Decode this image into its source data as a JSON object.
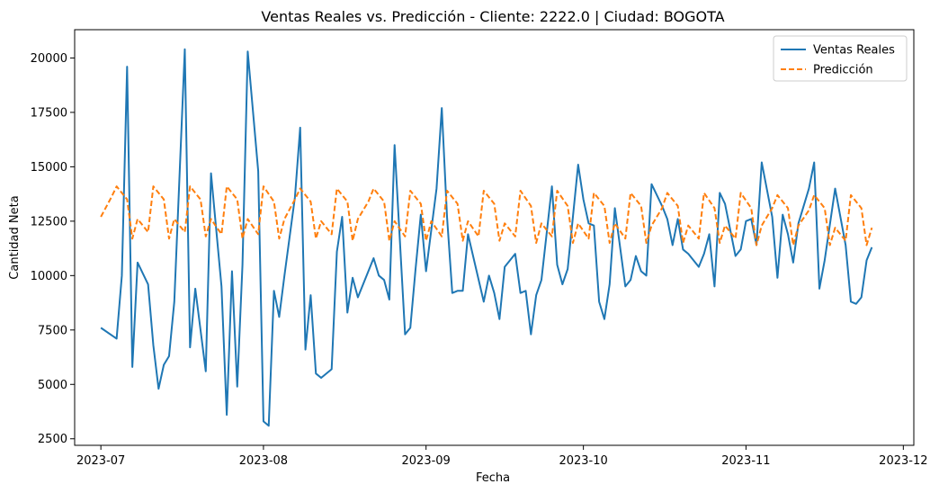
{
  "chart_data": {
    "type": "line",
    "title": "Ventas Reales vs. Predicción - Cliente: 2222.0 | Ciudad: BOGOTA",
    "xlabel": "Fecha",
    "ylabel": "Cantidad Neta",
    "xlim": [
      "2023-06-26",
      "2023-12-03"
    ],
    "ylim": [
      2200,
      21300
    ],
    "x_ticks": [
      {
        "date": "2023-07-01",
        "label": "2023-07"
      },
      {
        "date": "2023-08-01",
        "label": "2023-08"
      },
      {
        "date": "2023-09-01",
        "label": "2023-09"
      },
      {
        "date": "2023-10-01",
        "label": "2023-10"
      },
      {
        "date": "2023-11-01",
        "label": "2023-11"
      },
      {
        "date": "2023-12-01",
        "label": "2023-12"
      }
    ],
    "y_ticks": [
      {
        "value": 2500,
        "label": "2500"
      },
      {
        "value": 5000,
        "label": "5000"
      },
      {
        "value": 7500,
        "label": "7500"
      },
      {
        "value": 10000,
        "label": "10000"
      },
      {
        "value": 12500,
        "label": "12500"
      },
      {
        "value": 15000,
        "label": "15000"
      },
      {
        "value": 17500,
        "label": "17500"
      },
      {
        "value": 20000,
        "label": "20000"
      }
    ],
    "grid": false,
    "legend_position": "top-right",
    "series": [
      {
        "name": "Ventas Reales",
        "color": "#1f77b4",
        "style": "solid",
        "points": [
          [
            "2023-07-01",
            7600
          ],
          [
            "2023-07-04",
            7100
          ],
          [
            "2023-07-05",
            10000
          ],
          [
            "2023-07-06",
            19600
          ],
          [
            "2023-07-07",
            5800
          ],
          [
            "2023-07-08",
            10600
          ],
          [
            "2023-07-10",
            9600
          ],
          [
            "2023-07-11",
            6800
          ],
          [
            "2023-07-12",
            4800
          ],
          [
            "2023-07-13",
            5900
          ],
          [
            "2023-07-14",
            6300
          ],
          [
            "2023-07-15",
            8800
          ],
          [
            "2023-07-17",
            20400
          ],
          [
            "2023-07-18",
            6700
          ],
          [
            "2023-07-19",
            9400
          ],
          [
            "2023-07-21",
            5600
          ],
          [
            "2023-07-22",
            14700
          ],
          [
            "2023-07-24",
            9500
          ],
          [
            "2023-07-25",
            3600
          ],
          [
            "2023-07-26",
            10200
          ],
          [
            "2023-07-27",
            4900
          ],
          [
            "2023-07-28",
            10500
          ],
          [
            "2023-07-29",
            20300
          ],
          [
            "2023-07-31",
            14800
          ],
          [
            "2023-08-01",
            3300
          ],
          [
            "2023-08-02",
            3100
          ],
          [
            "2023-08-03",
            9300
          ],
          [
            "2023-08-04",
            8100
          ],
          [
            "2023-08-05",
            10000
          ],
          [
            "2023-08-07",
            13600
          ],
          [
            "2023-08-08",
            16800
          ],
          [
            "2023-08-09",
            6600
          ],
          [
            "2023-08-10",
            9100
          ],
          [
            "2023-08-11",
            5500
          ],
          [
            "2023-08-12",
            5300
          ],
          [
            "2023-08-14",
            5700
          ],
          [
            "2023-08-15",
            11100
          ],
          [
            "2023-08-16",
            12700
          ],
          [
            "2023-08-17",
            8300
          ],
          [
            "2023-08-18",
            9900
          ],
          [
            "2023-08-19",
            9000
          ],
          [
            "2023-08-22",
            10800
          ],
          [
            "2023-08-23",
            10000
          ],
          [
            "2023-08-24",
            9800
          ],
          [
            "2023-08-25",
            8900
          ],
          [
            "2023-08-26",
            16000
          ],
          [
            "2023-08-28",
            7300
          ],
          [
            "2023-08-29",
            7600
          ],
          [
            "2023-08-30",
            10300
          ],
          [
            "2023-08-31",
            12800
          ],
          [
            "2023-09-01",
            10200
          ],
          [
            "2023-09-03",
            14000
          ],
          [
            "2023-09-04",
            17700
          ],
          [
            "2023-09-05",
            12700
          ],
          [
            "2023-09-06",
            9200
          ],
          [
            "2023-09-07",
            9300
          ],
          [
            "2023-09-08",
            9300
          ],
          [
            "2023-09-09",
            11900
          ],
          [
            "2023-09-12",
            8800
          ],
          [
            "2023-09-13",
            10000
          ],
          [
            "2023-09-14",
            9200
          ],
          [
            "2023-09-15",
            8000
          ],
          [
            "2023-09-16",
            10400
          ],
          [
            "2023-09-18",
            11000
          ],
          [
            "2023-09-19",
            9200
          ],
          [
            "2023-09-20",
            9300
          ],
          [
            "2023-09-21",
            7300
          ],
          [
            "2023-09-22",
            9100
          ],
          [
            "2023-09-23",
            9800
          ],
          [
            "2023-09-25",
            14100
          ],
          [
            "2023-09-26",
            10500
          ],
          [
            "2023-09-27",
            9600
          ],
          [
            "2023-09-28",
            10300
          ],
          [
            "2023-09-30",
            15100
          ],
          [
            "2023-10-01",
            13500
          ],
          [
            "2023-10-02",
            12400
          ],
          [
            "2023-10-03",
            12300
          ],
          [
            "2023-10-04",
            8800
          ],
          [
            "2023-10-05",
            8000
          ],
          [
            "2023-10-06",
            9600
          ],
          [
            "2023-10-07",
            13100
          ],
          [
            "2023-10-09",
            9500
          ],
          [
            "2023-10-10",
            9800
          ],
          [
            "2023-10-11",
            10900
          ],
          [
            "2023-10-12",
            10200
          ],
          [
            "2023-10-13",
            10000
          ],
          [
            "2023-10-14",
            14200
          ],
          [
            "2023-10-16",
            13200
          ],
          [
            "2023-10-17",
            12600
          ],
          [
            "2023-10-18",
            11400
          ],
          [
            "2023-10-19",
            12600
          ],
          [
            "2023-10-20",
            11200
          ],
          [
            "2023-10-21",
            11000
          ],
          [
            "2023-10-23",
            10400
          ],
          [
            "2023-10-24",
            11000
          ],
          [
            "2023-10-25",
            11900
          ],
          [
            "2023-10-26",
            9500
          ],
          [
            "2023-10-27",
            13800
          ],
          [
            "2023-10-28",
            13300
          ],
          [
            "2023-10-30",
            10900
          ],
          [
            "2023-10-31",
            11200
          ],
          [
            "2023-11-01",
            12500
          ],
          [
            "2023-11-02",
            12600
          ],
          [
            "2023-11-03",
            11400
          ],
          [
            "2023-11-04",
            15200
          ],
          [
            "2023-11-06",
            12700
          ],
          [
            "2023-11-07",
            9900
          ],
          [
            "2023-11-08",
            12800
          ],
          [
            "2023-11-09",
            11900
          ],
          [
            "2023-11-10",
            10600
          ],
          [
            "2023-11-11",
            12400
          ],
          [
            "2023-11-13",
            14000
          ],
          [
            "2023-11-14",
            15200
          ],
          [
            "2023-11-15",
            9400
          ],
          [
            "2023-11-16",
            10700
          ],
          [
            "2023-11-18",
            14000
          ],
          [
            "2023-11-20",
            11400
          ],
          [
            "2023-11-21",
            8800
          ],
          [
            "2023-11-22",
            8700
          ],
          [
            "2023-11-23",
            9000
          ],
          [
            "2023-11-24",
            10700
          ],
          [
            "2023-11-25",
            11300
          ]
        ]
      },
      {
        "name": "Predicción",
        "color": "#ff7f0e",
        "style": "dashed",
        "points": [
          [
            "2023-07-01",
            12700
          ],
          [
            "2023-07-03",
            13600
          ],
          [
            "2023-07-04",
            14100
          ],
          [
            "2023-07-06",
            13500
          ],
          [
            "2023-07-07",
            11700
          ],
          [
            "2023-07-08",
            12600
          ],
          [
            "2023-07-10",
            12000
          ],
          [
            "2023-07-11",
            14100
          ],
          [
            "2023-07-13",
            13500
          ],
          [
            "2023-07-14",
            11700
          ],
          [
            "2023-07-15",
            12600
          ],
          [
            "2023-07-17",
            12000
          ],
          [
            "2023-07-18",
            14100
          ],
          [
            "2023-07-20",
            13500
          ],
          [
            "2023-07-21",
            11800
          ],
          [
            "2023-07-22",
            12600
          ],
          [
            "2023-07-24",
            11900
          ],
          [
            "2023-07-25",
            14100
          ],
          [
            "2023-07-27",
            13500
          ],
          [
            "2023-07-28",
            11700
          ],
          [
            "2023-07-29",
            12600
          ],
          [
            "2023-07-31",
            11900
          ],
          [
            "2023-08-01",
            14100
          ],
          [
            "2023-08-03",
            13400
          ],
          [
            "2023-08-04",
            11700
          ],
          [
            "2023-08-05",
            12600
          ],
          [
            "2023-08-07",
            13500
          ],
          [
            "2023-08-08",
            14000
          ],
          [
            "2023-08-10",
            13400
          ],
          [
            "2023-08-11",
            11700
          ],
          [
            "2023-08-12",
            12500
          ],
          [
            "2023-08-14",
            11900
          ],
          [
            "2023-08-15",
            14000
          ],
          [
            "2023-08-17",
            13400
          ],
          [
            "2023-08-18",
            11600
          ],
          [
            "2023-08-19",
            12600
          ],
          [
            "2023-08-21",
            13400
          ],
          [
            "2023-08-22",
            14000
          ],
          [
            "2023-08-24",
            13400
          ],
          [
            "2023-08-25",
            11600
          ],
          [
            "2023-08-26",
            12500
          ],
          [
            "2023-08-28",
            11800
          ],
          [
            "2023-08-29",
            13900
          ],
          [
            "2023-08-31",
            13300
          ],
          [
            "2023-09-01",
            11600
          ],
          [
            "2023-09-02",
            12500
          ],
          [
            "2023-09-04",
            11800
          ],
          [
            "2023-09-05",
            13900
          ],
          [
            "2023-09-07",
            13300
          ],
          [
            "2023-09-08",
            11600
          ],
          [
            "2023-09-09",
            12500
          ],
          [
            "2023-09-11",
            11800
          ],
          [
            "2023-09-12",
            13900
          ],
          [
            "2023-09-14",
            13300
          ],
          [
            "2023-09-15",
            11600
          ],
          [
            "2023-09-16",
            12400
          ],
          [
            "2023-09-18",
            11800
          ],
          [
            "2023-09-19",
            13900
          ],
          [
            "2023-09-21",
            13200
          ],
          [
            "2023-09-22",
            11500
          ],
          [
            "2023-09-23",
            12400
          ],
          [
            "2023-09-25",
            11800
          ],
          [
            "2023-09-26",
            13900
          ],
          [
            "2023-09-28",
            13200
          ],
          [
            "2023-09-29",
            11500
          ],
          [
            "2023-09-30",
            12400
          ],
          [
            "2023-10-02",
            11700
          ],
          [
            "2023-10-03",
            13800
          ],
          [
            "2023-10-05",
            13200
          ],
          [
            "2023-10-06",
            11500
          ],
          [
            "2023-10-07",
            12400
          ],
          [
            "2023-10-09",
            11700
          ],
          [
            "2023-10-10",
            13800
          ],
          [
            "2023-10-12",
            13200
          ],
          [
            "2023-10-13",
            11500
          ],
          [
            "2023-10-14",
            12300
          ],
          [
            "2023-10-16",
            13100
          ],
          [
            "2023-10-17",
            13800
          ],
          [
            "2023-10-19",
            13200
          ],
          [
            "2023-10-20",
            11500
          ],
          [
            "2023-10-21",
            12300
          ],
          [
            "2023-10-23",
            11700
          ],
          [
            "2023-10-24",
            13800
          ],
          [
            "2023-10-26",
            13100
          ],
          [
            "2023-10-27",
            11500
          ],
          [
            "2023-10-28",
            12300
          ],
          [
            "2023-10-30",
            11700
          ],
          [
            "2023-10-31",
            13800
          ],
          [
            "2023-11-02",
            13100
          ],
          [
            "2023-11-03",
            11400
          ],
          [
            "2023-11-04",
            12300
          ],
          [
            "2023-11-06",
            13100
          ],
          [
            "2023-11-07",
            13700
          ],
          [
            "2023-11-09",
            13100
          ],
          [
            "2023-11-10",
            11400
          ],
          [
            "2023-11-11",
            12300
          ],
          [
            "2023-11-13",
            13000
          ],
          [
            "2023-11-14",
            13700
          ],
          [
            "2023-11-16",
            13100
          ],
          [
            "2023-11-17",
            11400
          ],
          [
            "2023-11-18",
            12200
          ],
          [
            "2023-11-20",
            11600
          ],
          [
            "2023-11-21",
            13700
          ],
          [
            "2023-11-23",
            13100
          ],
          [
            "2023-11-24",
            11400
          ],
          [
            "2023-11-25",
            12200
          ]
        ]
      }
    ]
  }
}
